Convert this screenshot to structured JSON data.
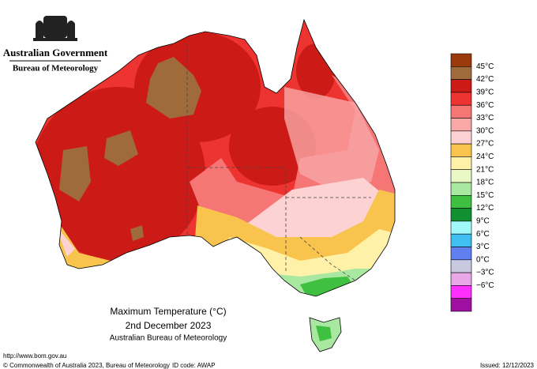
{
  "header": {
    "government": "Australian Government",
    "agency": "Bureau of Meteorology"
  },
  "map": {
    "title": "Maximum Temperature (°C)",
    "date": "2nd December 2023",
    "source": "Australian Bureau of Meteorology"
  },
  "legend": {
    "labels": [
      "45°C",
      "42°C",
      "39°C",
      "36°C",
      "33°C",
      "30°C",
      "27°C",
      "24°C",
      "21°C",
      "18°C",
      "15°C",
      "12°C",
      "9°C",
      "6°C",
      "3°C",
      "0°C",
      "−3°C",
      "−6°C"
    ],
    "colors": [
      "#9a3a0c",
      "#a06b3a",
      "#cc1a16",
      "#ee3430",
      "#f67676",
      "#f9a8a8",
      "#fcd2d2",
      "#f9c44e",
      "#fff2a8",
      "#eaf8c8",
      "#a8e8a0",
      "#40c040",
      "#109030",
      "#a0f8f8",
      "#40c0f0",
      "#6080f0",
      "#c8c8e0",
      "#e8a8e8",
      "#ff30ff"
    ],
    "bottom_color": "#a010a0"
  },
  "footer": {
    "url": "http://www.bom.gov.au",
    "copyright": "© Commonwealth of Australia 2023, Bureau of Meteorology",
    "id_code": "ID code: AWAP",
    "issued": "Issued: 12/12/2023"
  }
}
